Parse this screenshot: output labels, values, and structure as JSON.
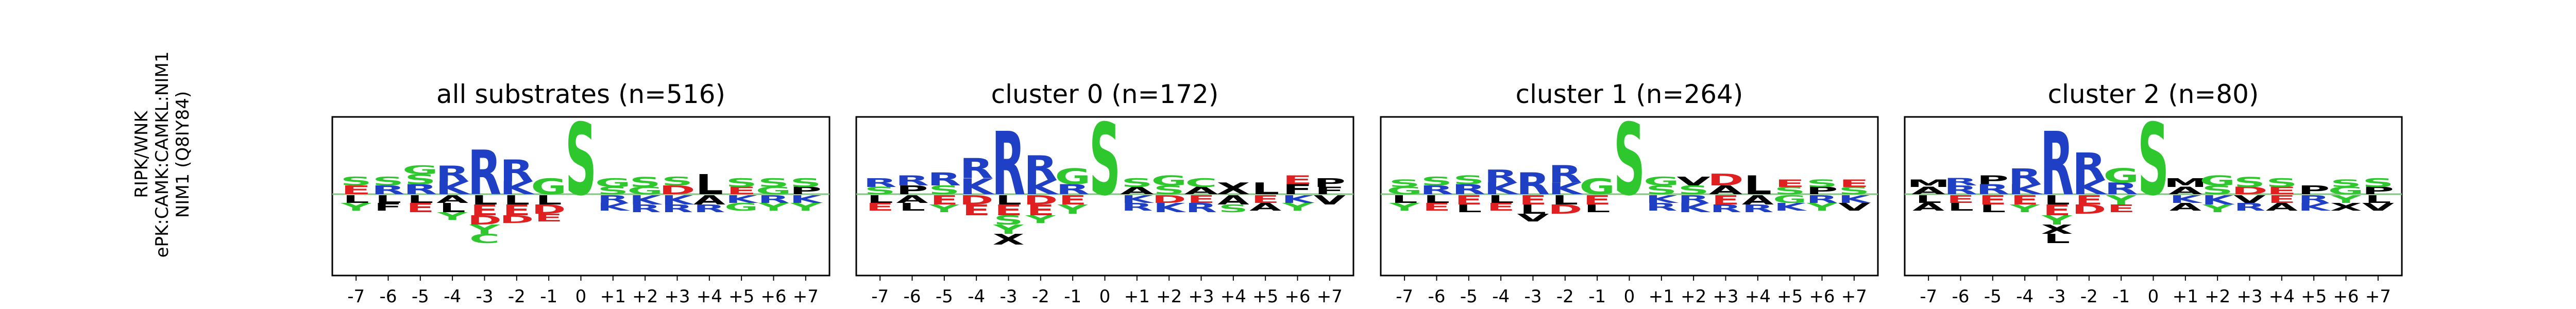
{
  "row_label": {
    "line1": "RIPK/WNK",
    "line2": "ePK:CAMK:CAMKL:NIM1",
    "line3": "NIM1 (Q8IY84)"
  },
  "colors": {
    "basic": "#1f3fc4",
    "acidic": "#e02020",
    "polar": "#2ec82e",
    "hydrophobic": "#000000",
    "phosphosite": "#2ec82e",
    "baseline": "#7fc47f"
  },
  "chart_data": [
    {
      "type": "sequence-logo",
      "title": "all substrates (n=516)",
      "positions": [
        "-7",
        "-6",
        "-5",
        "-4",
        "-3",
        "-2",
        "-1",
        "0",
        "+1",
        "+2",
        "+3",
        "+4",
        "+5",
        "+6",
        "+7"
      ],
      "above": [
        [
          {
            "l": "E",
            "h": 0.12
          },
          {
            "l": "S",
            "h": 0.12
          }
        ],
        [
          {
            "l": "R",
            "h": 0.12
          },
          {
            "l": "S",
            "h": 0.12
          }
        ],
        [
          {
            "l": "R",
            "h": 0.14
          },
          {
            "l": "S",
            "h": 0.14
          },
          {
            "l": "G",
            "h": 0.12
          }
        ],
        [
          {
            "l": "K",
            "h": 0.18
          },
          {
            "l": "R",
            "h": 0.22
          }
        ],
        [
          {
            "l": "R",
            "h": 0.62
          }
        ],
        [
          {
            "l": "K",
            "h": 0.18
          },
          {
            "l": "R",
            "h": 0.3
          }
        ],
        [
          {
            "l": "G",
            "h": 0.22
          }
        ],
        [
          {
            "l": "S",
            "h": 1.0
          }
        ],
        [
          {
            "l": "S",
            "h": 0.1
          },
          {
            "l": "G",
            "h": 0.12
          }
        ],
        [
          {
            "l": "G",
            "h": 0.1
          },
          {
            "l": "S",
            "h": 0.14
          }
        ],
        [
          {
            "l": "D",
            "h": 0.12
          },
          {
            "l": "S",
            "h": 0.12
          }
        ],
        [
          {
            "l": "L",
            "h": 0.28
          }
        ],
        [
          {
            "l": "E",
            "h": 0.1
          },
          {
            "l": "S",
            "h": 0.12
          }
        ],
        [
          {
            "l": "G",
            "h": 0.1
          },
          {
            "l": "S",
            "h": 0.12
          }
        ],
        [
          {
            "l": "P",
            "h": 0.1
          },
          {
            "l": "S",
            "h": 0.12
          }
        ]
      ],
      "below": [
        [
          {
            "l": "L",
            "h": 0.1
          },
          {
            "l": "Y",
            "h": 0.1
          }
        ],
        [
          {
            "l": "L",
            "h": 0.1
          },
          {
            "l": "F",
            "h": 0.1
          }
        ],
        [
          {
            "l": "L",
            "h": 0.1
          },
          {
            "l": "E",
            "h": 0.12
          }
        ],
        [
          {
            "l": "A",
            "h": 0.1
          },
          {
            "l": "L",
            "h": 0.12
          },
          {
            "l": "Y",
            "h": 0.1
          }
        ],
        [
          {
            "l": "L",
            "h": 0.12
          },
          {
            "l": "E",
            "h": 0.14
          },
          {
            "l": "D",
            "h": 0.12
          },
          {
            "l": "Y",
            "h": 0.12
          },
          {
            "l": "C",
            "h": 0.12
          }
        ],
        [
          {
            "l": "L",
            "h": 0.12
          },
          {
            "l": "E",
            "h": 0.14
          },
          {
            "l": "D",
            "h": 0.1
          }
        ],
        [
          {
            "l": "L",
            "h": 0.12
          },
          {
            "l": "D",
            "h": 0.12
          },
          {
            "l": "E",
            "h": 0.1
          }
        ],
        [],
        [
          {
            "l": "R",
            "h": 0.1
          },
          {
            "l": "K",
            "h": 0.1
          }
        ],
        [
          {
            "l": "K",
            "h": 0.12
          },
          {
            "l": "R",
            "h": 0.1
          }
        ],
        [
          {
            "l": "K",
            "h": 0.12
          },
          {
            "l": "R",
            "h": 0.1
          }
        ],
        [
          {
            "l": "A",
            "h": 0.12
          },
          {
            "l": "R",
            "h": 0.1
          }
        ],
        [
          {
            "l": "K",
            "h": 0.1
          },
          {
            "l": "G",
            "h": 0.1
          }
        ],
        [
          {
            "l": "R",
            "h": 0.1
          },
          {
            "l": "Y",
            "h": 0.1
          }
        ],
        [
          {
            "l": "K",
            "h": 0.1
          },
          {
            "l": "Y",
            "h": 0.1
          }
        ]
      ]
    },
    {
      "type": "sequence-logo",
      "title": "cluster 0 (n=172)",
      "positions": [
        "-7",
        "-6",
        "-5",
        "-4",
        "-3",
        "-2",
        "-1",
        "0",
        "+1",
        "+2",
        "+3",
        "+4",
        "+5",
        "+6",
        "+7"
      ],
      "above": [
        [
          {
            "l": "S",
            "h": 0.1
          },
          {
            "l": "R",
            "h": 0.12
          }
        ],
        [
          {
            "l": "P",
            "h": 0.12
          },
          {
            "l": "R",
            "h": 0.14
          }
        ],
        [
          {
            "l": "S",
            "h": 0.12
          },
          {
            "l": "R",
            "h": 0.18
          }
        ],
        [
          {
            "l": "K",
            "h": 0.22
          },
          {
            "l": "R",
            "h": 0.28
          }
        ],
        [
          {
            "l": "R",
            "h": 0.88
          }
        ],
        [
          {
            "l": "K",
            "h": 0.2
          },
          {
            "l": "R",
            "h": 0.34
          }
        ],
        [
          {
            "l": "R",
            "h": 0.14
          },
          {
            "l": "G",
            "h": 0.22
          }
        ],
        [
          {
            "l": "S",
            "h": 1.0
          }
        ],
        [
          {
            "l": "A",
            "h": 0.1
          },
          {
            "l": "S",
            "h": 0.12
          }
        ],
        [
          {
            "l": "S",
            "h": 0.12
          },
          {
            "l": "G",
            "h": 0.14
          }
        ],
        [
          {
            "l": "A",
            "h": 0.1
          },
          {
            "l": "C",
            "h": 0.12
          }
        ],
        [
          {
            "l": "X",
            "h": 0.16
          }
        ],
        [
          {
            "l": "L",
            "h": 0.16
          }
        ],
        [
          {
            "l": "F",
            "h": 0.14
          },
          {
            "l": "E",
            "h": 0.12
          }
        ],
        [
          {
            "l": "F",
            "h": 0.1
          },
          {
            "l": "P",
            "h": 0.12
          }
        ]
      ],
      "below": [
        [
          {
            "l": "L",
            "h": 0.1
          },
          {
            "l": "E",
            "h": 0.1
          }
        ],
        [
          {
            "l": "A",
            "h": 0.1
          },
          {
            "l": "L",
            "h": 0.1
          }
        ],
        [
          {
            "l": "E",
            "h": 0.12
          },
          {
            "l": "Y",
            "h": 0.1
          }
        ],
        [
          {
            "l": "D",
            "h": 0.12
          },
          {
            "l": "E",
            "h": 0.14
          }
        ],
        [
          {
            "l": "L",
            "h": 0.12
          },
          {
            "l": "E",
            "h": 0.14
          },
          {
            "l": "S",
            "h": 0.12
          },
          {
            "l": "Y",
            "h": 0.12
          },
          {
            "l": "X",
            "h": 0.14
          }
        ],
        [
          {
            "l": "D",
            "h": 0.12
          },
          {
            "l": "E",
            "h": 0.14
          },
          {
            "l": "Y",
            "h": 0.1
          }
        ],
        [
          {
            "l": "E",
            "h": 0.12
          },
          {
            "l": "Y",
            "h": 0.12
          }
        ],
        [],
        [
          {
            "l": "K",
            "h": 0.1
          },
          {
            "l": "R",
            "h": 0.1
          }
        ],
        [
          {
            "l": "D",
            "h": 0.1
          },
          {
            "l": "K",
            "h": 0.12
          }
        ],
        [
          {
            "l": "E",
            "h": 0.1
          },
          {
            "l": "R",
            "h": 0.12
          }
        ],
        [
          {
            "l": "A",
            "h": 0.12
          },
          {
            "l": "S",
            "h": 0.1
          }
        ],
        [
          {
            "l": "E",
            "h": 0.1
          },
          {
            "l": "A",
            "h": 0.1
          }
        ],
        [
          {
            "l": "K",
            "h": 0.1
          },
          {
            "l": "Y",
            "h": 0.1
          }
        ],
        [
          {
            "l": "V",
            "h": 0.12
          }
        ]
      ]
    },
    {
      "type": "sequence-logo",
      "title": "cluster 1 (n=264)",
      "positions": [
        "-7",
        "-6",
        "-5",
        "-4",
        "-3",
        "-2",
        "-1",
        "0",
        "+1",
        "+2",
        "+3",
        "+4",
        "+5",
        "+6",
        "+7"
      ],
      "above": [
        [
          {
            "l": "G",
            "h": 0.1
          },
          {
            "l": "S",
            "h": 0.1
          }
        ],
        [
          {
            "l": "R",
            "h": 0.12
          },
          {
            "l": "S",
            "h": 0.12
          }
        ],
        [
          {
            "l": "R",
            "h": 0.14
          },
          {
            "l": "S",
            "h": 0.12
          }
        ],
        [
          {
            "l": "K",
            "h": 0.16
          },
          {
            "l": "R",
            "h": 0.18
          }
        ],
        [
          {
            "l": "R",
            "h": 0.3
          }
        ],
        [
          {
            "l": "K",
            "h": 0.16
          },
          {
            "l": "R",
            "h": 0.24
          }
        ],
        [
          {
            "l": "G",
            "h": 0.22
          }
        ],
        [
          {
            "l": "S",
            "h": 1.0
          }
        ],
        [
          {
            "l": "S",
            "h": 0.12
          },
          {
            "l": "G",
            "h": 0.12
          }
        ],
        [
          {
            "l": "S",
            "h": 0.12
          },
          {
            "l": "V",
            "h": 0.12
          }
        ],
        [
          {
            "l": "A",
            "h": 0.12
          },
          {
            "l": "D",
            "h": 0.16
          }
        ],
        [
          {
            "l": "L",
            "h": 0.26
          }
        ],
        [
          {
            "l": "S",
            "h": 0.1
          },
          {
            "l": "E",
            "h": 0.1
          }
        ],
        [
          {
            "l": "P",
            "h": 0.1
          },
          {
            "l": "S",
            "h": 0.1
          }
        ],
        [
          {
            "l": "S",
            "h": 0.1
          },
          {
            "l": "E",
            "h": 0.1
          }
        ]
      ],
      "below": [
        [
          {
            "l": "L",
            "h": 0.1
          },
          {
            "l": "Y",
            "h": 0.1
          }
        ],
        [
          {
            "l": "L",
            "h": 0.1
          },
          {
            "l": "E",
            "h": 0.1
          }
        ],
        [
          {
            "l": "E",
            "h": 0.12
          },
          {
            "l": "L",
            "h": 0.1
          }
        ],
        [
          {
            "l": "L",
            "h": 0.1
          },
          {
            "l": "E",
            "h": 0.1
          }
        ],
        [
          {
            "l": "E",
            "h": 0.12
          },
          {
            "l": "L",
            "h": 0.12
          },
          {
            "l": "V",
            "h": 0.1
          }
        ],
        [
          {
            "l": "L",
            "h": 0.12
          },
          {
            "l": "D",
            "h": 0.12
          }
        ],
        [
          {
            "l": "E",
            "h": 0.12
          },
          {
            "l": "L",
            "h": 0.1
          }
        ],
        [],
        [
          {
            "l": "K",
            "h": 0.1
          },
          {
            "l": "R",
            "h": 0.1
          }
        ],
        [
          {
            "l": "R",
            "h": 0.1
          },
          {
            "l": "K",
            "h": 0.12
          }
        ],
        [
          {
            "l": "E",
            "h": 0.12
          },
          {
            "l": "R",
            "h": 0.1
          }
        ],
        [
          {
            "l": "A",
            "h": 0.12
          },
          {
            "l": "R",
            "h": 0.1
          }
        ],
        [
          {
            "l": "G",
            "h": 0.1
          },
          {
            "l": "K",
            "h": 0.1
          }
        ],
        [
          {
            "l": "R",
            "h": 0.1
          },
          {
            "l": "Y",
            "h": 0.1
          }
        ],
        [
          {
            "l": "K",
            "h": 0.1
          },
          {
            "l": "V",
            "h": 0.1
          }
        ]
      ]
    },
    {
      "type": "sequence-logo",
      "title": "cluster 2 (n=80)",
      "positions": [
        "-7",
        "-6",
        "-5",
        "-4",
        "-3",
        "-2",
        "-1",
        "0",
        "+1",
        "+2",
        "+3",
        "+4",
        "+5",
        "+6",
        "+7"
      ],
      "above": [
        [
          {
            "l": "A",
            "h": 0.1
          },
          {
            "l": "M",
            "h": 0.1
          }
        ],
        [
          {
            "l": "R",
            "h": 0.12
          },
          {
            "l": "R",
            "h": 0.1
          }
        ],
        [
          {
            "l": "R",
            "h": 0.14
          },
          {
            "l": "P",
            "h": 0.12
          }
        ],
        [
          {
            "l": "K",
            "h": 0.14
          },
          {
            "l": "R",
            "h": 0.22
          }
        ],
        [
          {
            "l": "R",
            "h": 0.88
          }
        ],
        [
          {
            "l": "K",
            "h": 0.2
          },
          {
            "l": "R",
            "h": 0.38
          }
        ],
        [
          {
            "l": "R",
            "h": 0.16
          },
          {
            "l": "G",
            "h": 0.2
          }
        ],
        [
          {
            "l": "S",
            "h": 1.0
          }
        ],
        [
          {
            "l": "A",
            "h": 0.1
          },
          {
            "l": "M",
            "h": 0.12
          }
        ],
        [
          {
            "l": "S",
            "h": 0.12
          },
          {
            "l": "G",
            "h": 0.14
          }
        ],
        [
          {
            "l": "D",
            "h": 0.1
          },
          {
            "l": "S",
            "h": 0.14
          }
        ],
        [
          {
            "l": "E",
            "h": 0.1
          },
          {
            "l": "S",
            "h": 0.12
          }
        ],
        [
          {
            "l": "P",
            "h": 0.12
          }
        ],
        [
          {
            "l": "G",
            "h": 0.1
          },
          {
            "l": "S",
            "h": 0.1
          }
        ],
        [
          {
            "l": "P",
            "h": 0.1
          },
          {
            "l": "S",
            "h": 0.12
          }
        ]
      ],
      "below": [
        [
          {
            "l": "L",
            "h": 0.1
          },
          {
            "l": "A",
            "h": 0.1
          }
        ],
        [
          {
            "l": "E",
            "h": 0.1
          },
          {
            "l": "L",
            "h": 0.1
          }
        ],
        [
          {
            "l": "E",
            "h": 0.12
          },
          {
            "l": "L",
            "h": 0.1
          }
        ],
        [
          {
            "l": "E",
            "h": 0.12
          },
          {
            "l": "Y",
            "h": 0.1
          }
        ],
        [
          {
            "l": "L",
            "h": 0.12
          },
          {
            "l": "E",
            "h": 0.14
          },
          {
            "l": "Y",
            "h": 0.12
          },
          {
            "l": "X",
            "h": 0.12
          },
          {
            "l": "L",
            "h": 0.12
          }
        ],
        [
          {
            "l": "E",
            "h": 0.12
          },
          {
            "l": "D",
            "h": 0.12
          }
        ],
        [
          {
            "l": "Y",
            "h": 0.12
          },
          {
            "l": "E",
            "h": 0.1
          }
        ],
        [],
        [
          {
            "l": "K",
            "h": 0.1
          },
          {
            "l": "A",
            "h": 0.1
          }
        ],
        [
          {
            "l": "K",
            "h": 0.12
          },
          {
            "l": "Y",
            "h": 0.1
          }
        ],
        [
          {
            "l": "V",
            "h": 0.1
          },
          {
            "l": "R",
            "h": 0.1
          }
        ],
        [
          {
            "l": "E",
            "h": 0.1
          },
          {
            "l": "A",
            "h": 0.1
          }
        ],
        [
          {
            "l": "R",
            "h": 0.1
          },
          {
            "l": "K",
            "h": 0.1
          }
        ],
        [
          {
            "l": "Y",
            "h": 0.1
          },
          {
            "l": "X",
            "h": 0.1
          }
        ],
        [
          {
            "l": "L",
            "h": 0.1
          },
          {
            "l": "V",
            "h": 0.1
          }
        ]
      ]
    }
  ]
}
